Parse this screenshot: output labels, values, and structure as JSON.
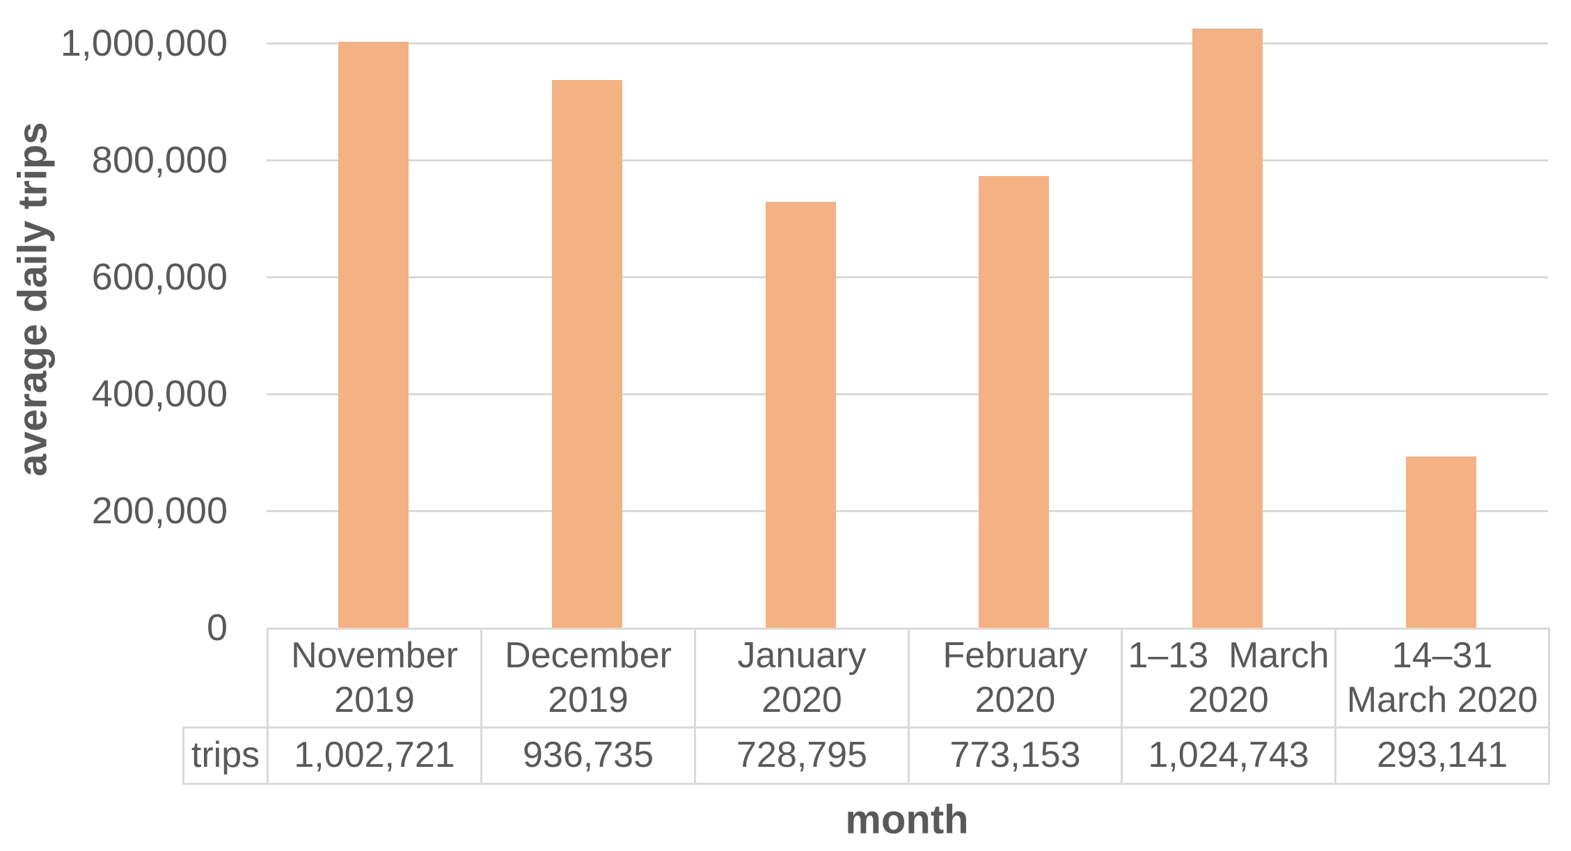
{
  "chart_data": {
    "type": "bar",
    "title": "",
    "xlabel": "month",
    "ylabel": "average daily trips",
    "categories": [
      "November 2019",
      "December 2019",
      "January 2020",
      "February 2020",
      "1–13 March 2020",
      "14–31 March 2020"
    ],
    "categories_display": [
      "November\n2019",
      "December\n2019",
      "January\n2020",
      "February\n2020",
      "1–13  March\n2020",
      "14–31\nMarch 2020"
    ],
    "series": [
      {
        "name": "trips",
        "values": [
          1002721,
          936735,
          728795,
          773153,
          1024743,
          293141
        ],
        "values_formatted": [
          "1,002,721",
          "936,735",
          "728,795",
          "773,153",
          "1,024,743",
          "293,141"
        ]
      }
    ],
    "ylim": [
      0,
      1070000
    ],
    "yticks": [
      0,
      200000,
      400000,
      600000,
      800000,
      1000000
    ],
    "ytick_labels": [
      "0",
      "200,000",
      "400,000",
      "600,000",
      "800,000",
      "1,000,000"
    ],
    "grid": true,
    "legend_position": "none",
    "data_table": {
      "row_label": "trips",
      "row_values": [
        "1,002,721",
        "936,735",
        "728,795",
        "773,153",
        "1,024,743",
        "293,141"
      ]
    },
    "colors": {
      "bar": "#F4B183",
      "gridline": "#D9D9D9",
      "table_border": "#D9D9D9",
      "text": "#595959"
    }
  }
}
